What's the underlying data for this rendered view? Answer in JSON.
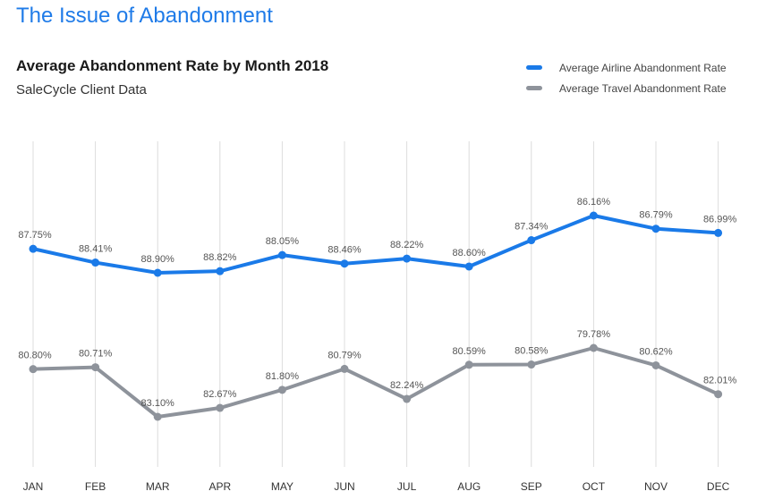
{
  "page": {
    "heading": "The Issue of Abandonment"
  },
  "chart_data": {
    "type": "line",
    "title": "Average Abandonment Rate by Month 2018",
    "subtitle": "SaleCycle Client Data",
    "categories": [
      "JAN",
      "FEB",
      "MAR",
      "APR",
      "MAY",
      "JUN",
      "JUL",
      "AUG",
      "SEP",
      "OCT",
      "NOV",
      "DEC"
    ],
    "series": [
      {
        "name": "Average Airline Abandonment Rate",
        "color": "#1a7ae8",
        "values": [
          87.75,
          88.41,
          88.9,
          88.82,
          88.05,
          88.46,
          88.22,
          88.6,
          87.34,
          86.16,
          86.79,
          86.99
        ],
        "labels": [
          "87.75%",
          "88.41%",
          "88.90%",
          "88.82%",
          "88.05%",
          "88.46%",
          "88.22%",
          "88.60%",
          "87.34%",
          "86.16%",
          "86.79%",
          "86.99%"
        ]
      },
      {
        "name": "Average Travel Abandonment Rate",
        "color": "#8e939b",
        "values": [
          80.8,
          80.71,
          83.1,
          82.67,
          81.8,
          80.79,
          82.24,
          80.59,
          80.58,
          79.78,
          80.62,
          82.01
        ],
        "labels": [
          "80.80%",
          "80.71%",
          "83.10%",
          "82.67%",
          "81.80%",
          "80.79%",
          "82.24%",
          "80.59%",
          "80.58%",
          "79.78%",
          "80.62%",
          "82.01%"
        ]
      }
    ],
    "legend_position": "top-right",
    "grid": "vertical",
    "y_axis_visible": false
  }
}
